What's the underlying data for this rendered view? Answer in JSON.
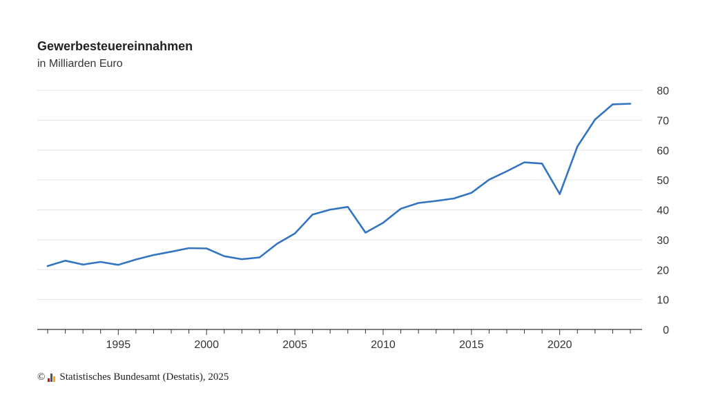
{
  "chart_data": {
    "type": "line",
    "title": "Gewerbesteuereinnahmen",
    "subtitle": "in Milliarden Euro",
    "xlabel": "",
    "ylabel": "",
    "xlim": [
      1991,
      2024
    ],
    "ylim": [
      0,
      80
    ],
    "y_ticks": [
      0,
      10,
      20,
      30,
      40,
      50,
      60,
      70,
      80
    ],
    "x_tick_labels": [
      1995,
      2000,
      2005,
      2010,
      2015,
      2020
    ],
    "grid": true,
    "y_axis_position": "right",
    "line_color": "#3274c2",
    "series": [
      {
        "x": [
          1991,
          1992,
          1993,
          1994,
          1995,
          1996,
          1997,
          1998,
          1999,
          2000,
          2001,
          2002,
          2003,
          2004,
          2005,
          2006,
          2007,
          2008,
          2009,
          2010,
          2011,
          2012,
          2013,
          2014,
          2015,
          2016,
          2017,
          2018,
          2019,
          2020,
          2021,
          2022,
          2023,
          2024
        ],
        "values": [
          21.2,
          23.0,
          21.7,
          22.6,
          21.6,
          23.4,
          24.9,
          26.0,
          27.2,
          27.1,
          24.5,
          23.5,
          24.1,
          28.7,
          32.1,
          38.4,
          40.1,
          41.0,
          32.4,
          35.7,
          40.4,
          42.3,
          43.0,
          43.8,
          45.7,
          50.1,
          52.9,
          55.9,
          55.5,
          45.3,
          61.2,
          70.2,
          75.3,
          75.5
        ]
      }
    ]
  },
  "footer": {
    "copyright_symbol": "©",
    "source": "Statistisches Bundesamt (Destatis), 2025"
  }
}
